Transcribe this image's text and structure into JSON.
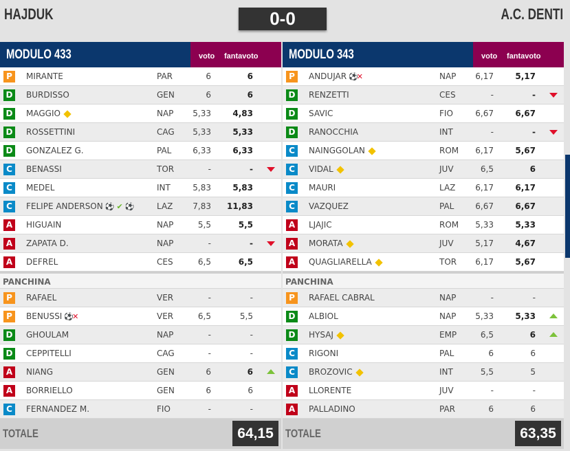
{
  "match": {
    "home": "HAJDUK",
    "away": "A.C. DENTI",
    "score": "0-0"
  },
  "labels": {
    "voto": "voto",
    "fantavoto": "fantavoto",
    "panchina": "PANCHINA",
    "totale": "TOTALE"
  },
  "colors": {
    "P": "#f7941d",
    "D": "#0b8a17",
    "C": "#0a8ac8",
    "A": "#c0001a",
    "header": "#0b376d",
    "header_accent": "#8c0050"
  },
  "teams": [
    {
      "modulo": "MODULO 433",
      "totale": "64,15",
      "starters": [
        {
          "role": "P",
          "name": "MIRANTE",
          "team": "PAR",
          "voto": "6",
          "fv": "6",
          "icons": [],
          "arrow": ""
        },
        {
          "role": "D",
          "name": "BURDISSO",
          "team": "GEN",
          "voto": "6",
          "fv": "6",
          "icons": [],
          "arrow": ""
        },
        {
          "role": "D",
          "name": "MAGGIO",
          "team": "NAP",
          "voto": "5,33",
          "fv": "4,83",
          "icons": [
            "yellow-card"
          ],
          "arrow": ""
        },
        {
          "role": "D",
          "name": "ROSSETTINI",
          "team": "CAG",
          "voto": "5,33",
          "fv": "5,33",
          "icons": [],
          "arrow": ""
        },
        {
          "role": "D",
          "name": "GONZALEZ G.",
          "team": "PAL",
          "voto": "6,33",
          "fv": "6,33",
          "icons": [],
          "arrow": ""
        },
        {
          "role": "C",
          "name": "BENASSI",
          "team": "TOR",
          "voto": "-",
          "fv": "-",
          "icons": [],
          "arrow": "down"
        },
        {
          "role": "C",
          "name": "MEDEL",
          "team": "INT",
          "voto": "5,83",
          "fv": "5,83",
          "icons": [],
          "arrow": ""
        },
        {
          "role": "C",
          "name": "FELIPE ANDERSON",
          "team": "LAZ",
          "voto": "7,83",
          "fv": "11,83",
          "icons": [
            "goal",
            "check",
            "assist"
          ],
          "arrow": ""
        },
        {
          "role": "A",
          "name": "HIGUAIN",
          "team": "NAP",
          "voto": "5,5",
          "fv": "5,5",
          "icons": [],
          "arrow": ""
        },
        {
          "role": "A",
          "name": "ZAPATA D.",
          "team": "NAP",
          "voto": "-",
          "fv": "-",
          "icons": [],
          "arrow": "down"
        },
        {
          "role": "A",
          "name": "DEFREL",
          "team": "CES",
          "voto": "6,5",
          "fv": "6,5",
          "icons": [],
          "arrow": ""
        }
      ],
      "bench": [
        {
          "role": "P",
          "name": "RAFAEL",
          "team": "VER",
          "voto": "-",
          "fv": "-",
          "icons": [],
          "arrow": "",
          "bold": false
        },
        {
          "role": "P",
          "name": "BENUSSI",
          "team": "VER",
          "voto": "6,5",
          "fv": "5,5",
          "icons": [
            "goal-conceded"
          ],
          "arrow": "",
          "bold": false
        },
        {
          "role": "D",
          "name": "GHOULAM",
          "team": "NAP",
          "voto": "-",
          "fv": "-",
          "icons": [],
          "arrow": "",
          "bold": false
        },
        {
          "role": "D",
          "name": "CEPPITELLI",
          "team": "CAG",
          "voto": "-",
          "fv": "-",
          "icons": [],
          "arrow": "",
          "bold": false
        },
        {
          "role": "A",
          "name": "NIANG",
          "team": "GEN",
          "voto": "6",
          "fv": "6",
          "icons": [],
          "arrow": "up",
          "bold": true
        },
        {
          "role": "A",
          "name": "BORRIELLO",
          "team": "GEN",
          "voto": "6",
          "fv": "6",
          "icons": [],
          "arrow": "",
          "bold": false
        },
        {
          "role": "C",
          "name": "FERNANDEZ M.",
          "team": "FIO",
          "voto": "-",
          "fv": "-",
          "icons": [],
          "arrow": "",
          "bold": false
        }
      ]
    },
    {
      "modulo": "MODULO 343",
      "totale": "63,35",
      "starters": [
        {
          "role": "P",
          "name": "ANDUJAR",
          "team": "NAP",
          "voto": "6,17",
          "fv": "5,17",
          "icons": [
            "goal-conceded"
          ],
          "arrow": ""
        },
        {
          "role": "D",
          "name": "RENZETTI",
          "team": "CES",
          "voto": "-",
          "fv": "-",
          "icons": [],
          "arrow": "down"
        },
        {
          "role": "D",
          "name": "SAVIC",
          "team": "FIO",
          "voto": "6,67",
          "fv": "6,67",
          "icons": [],
          "arrow": ""
        },
        {
          "role": "D",
          "name": "RANOCCHIA",
          "team": "INT",
          "voto": "-",
          "fv": "-",
          "icons": [],
          "arrow": "down"
        },
        {
          "role": "C",
          "name": "NAINGGOLAN",
          "team": "ROM",
          "voto": "6,17",
          "fv": "5,67",
          "icons": [
            "yellow-card"
          ],
          "arrow": ""
        },
        {
          "role": "C",
          "name": "VIDAL",
          "team": "JUV",
          "voto": "6,5",
          "fv": "6",
          "icons": [
            "yellow-card"
          ],
          "arrow": ""
        },
        {
          "role": "C",
          "name": "MAURI",
          "team": "LAZ",
          "voto": "6,17",
          "fv": "6,17",
          "icons": [],
          "arrow": ""
        },
        {
          "role": "C",
          "name": "VAZQUEZ",
          "team": "PAL",
          "voto": "6,67",
          "fv": "6,67",
          "icons": [],
          "arrow": ""
        },
        {
          "role": "A",
          "name": "LJAJIC",
          "team": "ROM",
          "voto": "5,33",
          "fv": "5,33",
          "icons": [],
          "arrow": ""
        },
        {
          "role": "A",
          "name": "MORATA",
          "team": "JUV",
          "voto": "5,17",
          "fv": "4,67",
          "icons": [
            "yellow-card"
          ],
          "arrow": ""
        },
        {
          "role": "A",
          "name": "QUAGLIARELLA",
          "team": "TOR",
          "voto": "6,17",
          "fv": "5,67",
          "icons": [
            "yellow-card"
          ],
          "arrow": ""
        }
      ],
      "bench": [
        {
          "role": "P",
          "name": "RAFAEL CABRAL",
          "team": "NAP",
          "voto": "-",
          "fv": "-",
          "icons": [],
          "arrow": "",
          "bold": false
        },
        {
          "role": "D",
          "name": "ALBIOL",
          "team": "NAP",
          "voto": "5,33",
          "fv": "5,33",
          "icons": [],
          "arrow": "up",
          "bold": true
        },
        {
          "role": "D",
          "name": "HYSAJ",
          "team": "EMP",
          "voto": "6,5",
          "fv": "6",
          "icons": [
            "yellow-card"
          ],
          "arrow": "up",
          "bold": true
        },
        {
          "role": "C",
          "name": "RIGONI",
          "team": "PAL",
          "voto": "6",
          "fv": "6",
          "icons": [],
          "arrow": "",
          "bold": false
        },
        {
          "role": "C",
          "name": "BROZOVIC",
          "team": "INT",
          "voto": "5,5",
          "fv": "5",
          "icons": [
            "yellow-card"
          ],
          "arrow": "",
          "bold": false
        },
        {
          "role": "A",
          "name": "LLORENTE",
          "team": "JUV",
          "voto": "-",
          "fv": "-",
          "icons": [],
          "arrow": "",
          "bold": false
        },
        {
          "role": "A",
          "name": "PALLADINO",
          "team": "PAR",
          "voto": "6",
          "fv": "6",
          "icons": [],
          "arrow": "",
          "bold": false
        }
      ]
    }
  ]
}
